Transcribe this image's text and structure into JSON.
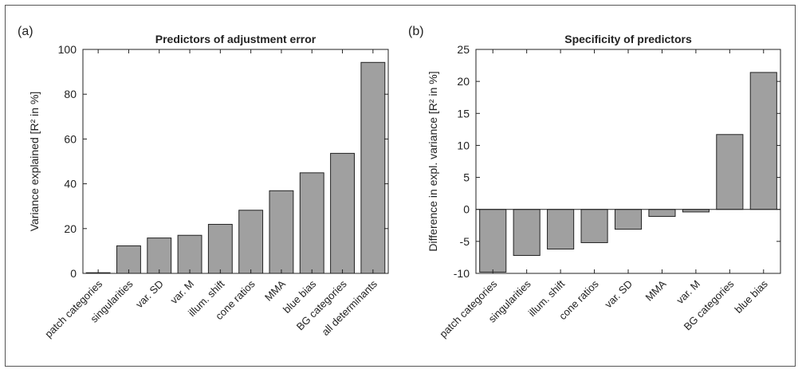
{
  "chart_data": [
    {
      "type": "bar",
      "panel_label": "(a)",
      "title": "Predictors of adjustment error",
      "xlabel": "",
      "ylabel": "Variance explained [R² in %]",
      "ylim": [
        0,
        100
      ],
      "yticks": [
        0,
        20,
        40,
        60,
        80,
        100
      ],
      "categories": [
        "patch categories",
        "singularities",
        "var. SD",
        "var. M",
        "illum. shift",
        "cone ratios",
        "MMA",
        "blue bias",
        "BG categories",
        "all determinants"
      ],
      "values": [
        0.3,
        12.3,
        15.8,
        17.0,
        21.9,
        28.2,
        36.9,
        44.9,
        53.6,
        94.2
      ],
      "bar_color": "#a0a0a0",
      "grid": false
    },
    {
      "type": "bar",
      "panel_label": "(b)",
      "title": "Specificity of predictors",
      "xlabel": "",
      "ylabel": "Difference in expl. variance [R² in %]",
      "ylim": [
        -10,
        25
      ],
      "yticks": [
        -10,
        -5,
        0,
        5,
        10,
        15,
        20,
        25
      ],
      "categories": [
        "patch categories",
        "singularities",
        "illum. shift",
        "cone ratios",
        "var. SD",
        "MMA",
        "var. M",
        "BG categories",
        "blue bias"
      ],
      "values": [
        -9.8,
        -7.2,
        -6.2,
        -5.2,
        -3.1,
        -1.1,
        -0.4,
        11.7,
        21.4
      ],
      "bar_color": "#a0a0a0",
      "grid": false
    }
  ]
}
